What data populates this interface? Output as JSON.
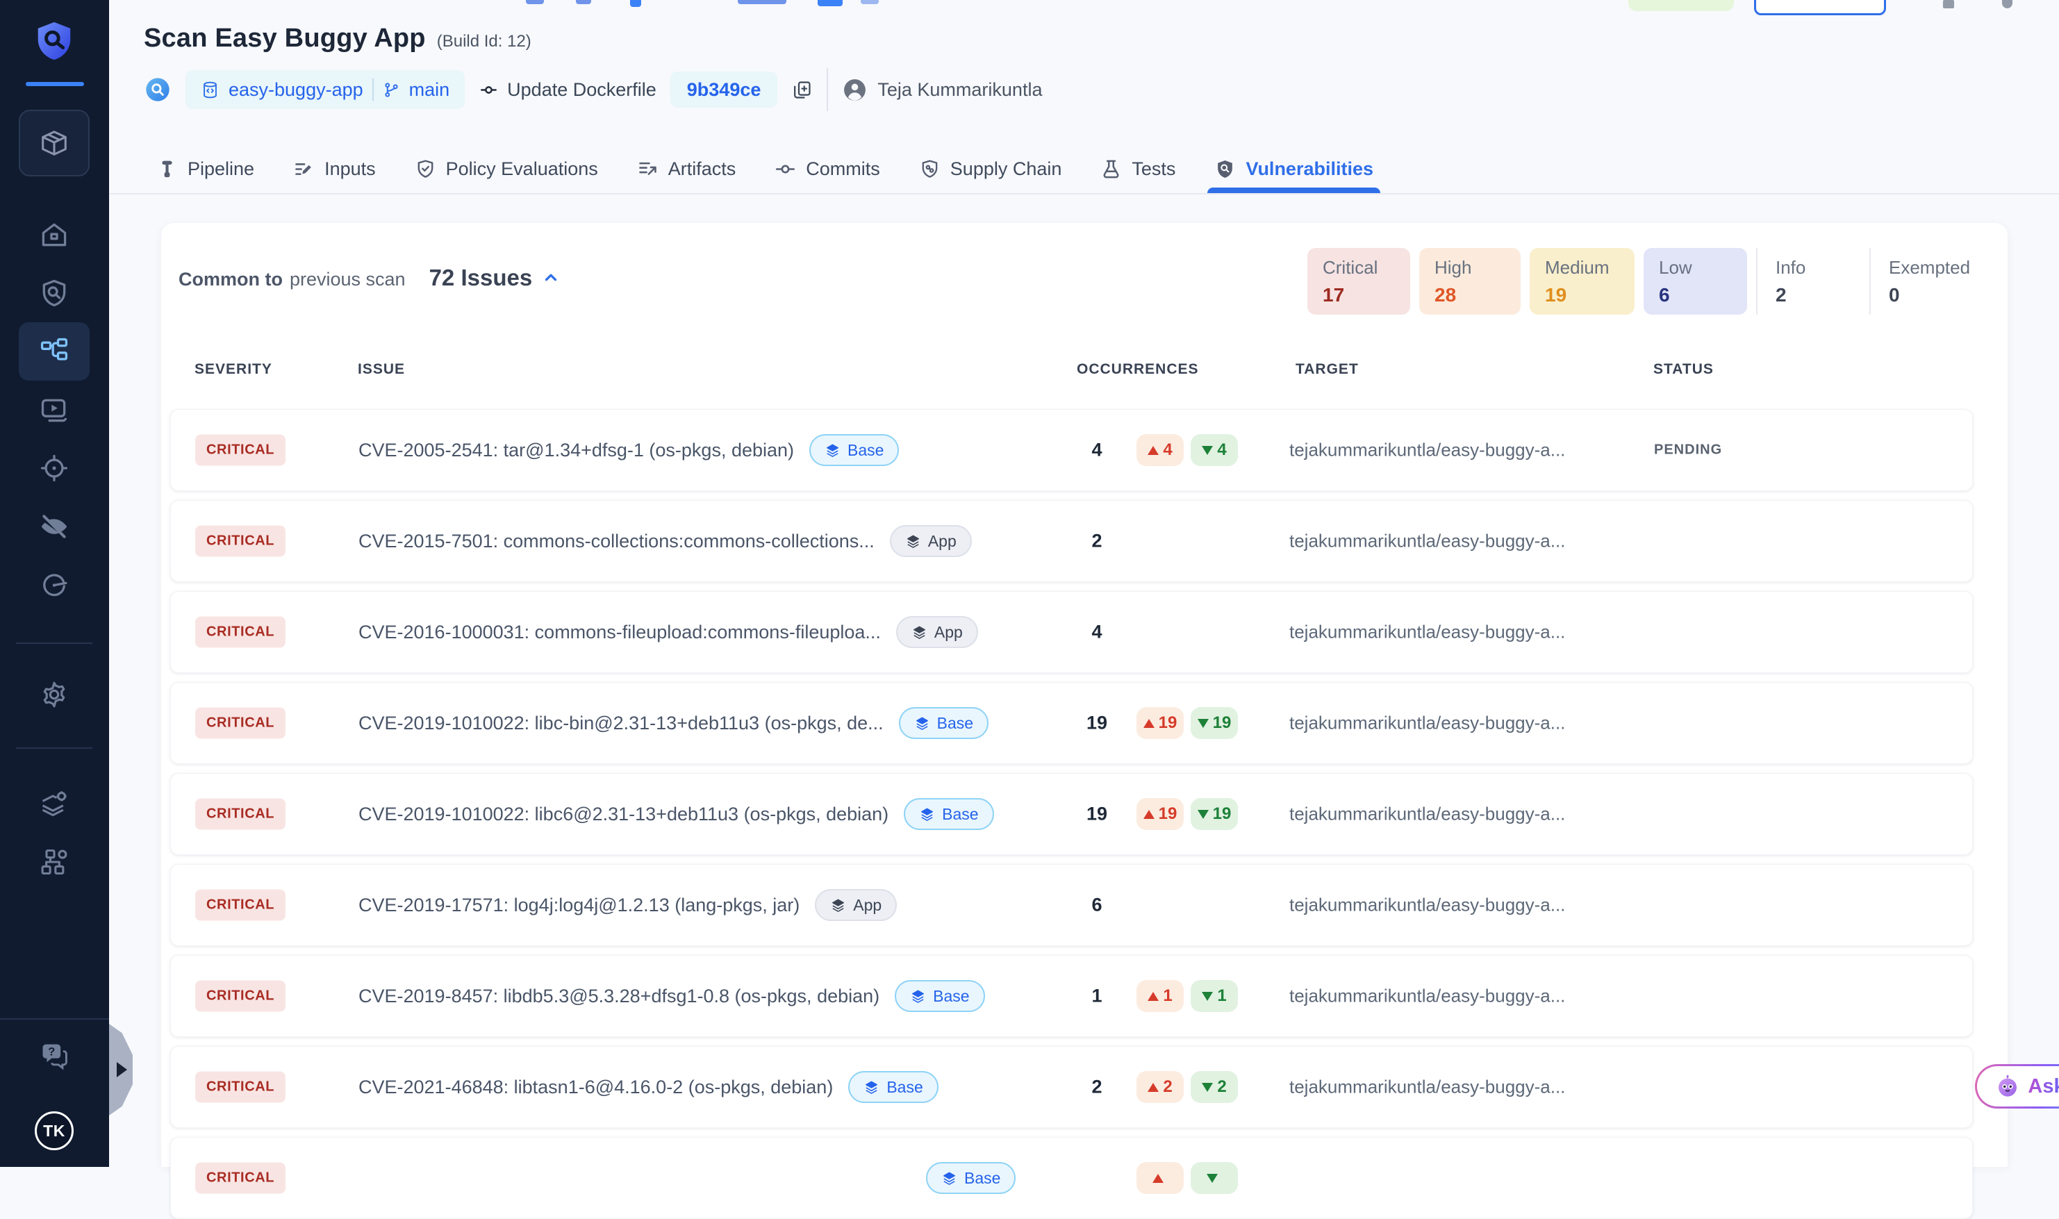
{
  "header": {
    "title": "Scan Easy Buggy App",
    "build_id": "(Build Id: 12)",
    "repo_name": "easy-buggy-app",
    "branch": "main",
    "commit_message": "Update Dockerfile",
    "commit_hash": "9b349ce",
    "author": "Teja Kummarikuntla"
  },
  "sidebar": {
    "logo_icon": "shield-logo",
    "project_icon": "package",
    "nav": [
      {
        "icon": "home",
        "active": false
      },
      {
        "icon": "scan-shield",
        "active": false
      },
      {
        "icon": "pipeline",
        "active": true
      },
      {
        "icon": "video-run",
        "active": false
      },
      {
        "icon": "target",
        "active": false
      },
      {
        "icon": "eye-off",
        "active": false
      },
      {
        "icon": "gauge",
        "active": false
      }
    ],
    "settings_icon": "gear",
    "admin": [
      {
        "icon": "layers-gear"
      },
      {
        "icon": "org-gear"
      }
    ],
    "help_icon": "chat-help",
    "avatar_initials": "TK"
  },
  "tabs": [
    {
      "label": "Pipeline",
      "icon": "tab-pipeline",
      "active": false
    },
    {
      "label": "Inputs",
      "icon": "tab-inputs",
      "active": false
    },
    {
      "label": "Policy Evaluations",
      "icon": "tab-policy",
      "active": false
    },
    {
      "label": "Artifacts",
      "icon": "tab-artifacts",
      "active": false
    },
    {
      "label": "Commits",
      "icon": "tab-commits",
      "active": false
    },
    {
      "label": "Supply Chain",
      "icon": "tab-supply-chain",
      "active": false
    },
    {
      "label": "Tests",
      "icon": "tab-tests",
      "active": false
    },
    {
      "label": "Vulnerabilities",
      "icon": "tab-vulnerabilities",
      "active": true
    }
  ],
  "summary": {
    "scope_bold": "Common to",
    "scope_rest": "previous scan",
    "issues_total": "72 Issues",
    "severities": [
      {
        "label": "Critical",
        "count": "17",
        "bg": "#f6e3e2",
        "num_color": "#9c2b21"
      },
      {
        "label": "High",
        "count": "28",
        "bg": "#fcebdc",
        "num_color": "#e05627"
      },
      {
        "label": "Medium",
        "count": "19",
        "bg": "#faefcc",
        "num_color": "#df8e1d"
      },
      {
        "label": "Low",
        "count": "6",
        "bg": "#e2e4f8",
        "num_color": "#28337e"
      },
      {
        "label": "Info",
        "count": "2",
        "bg": "",
        "num_color": "#3f4756"
      },
      {
        "label": "Exempted",
        "count": "0",
        "bg": "",
        "num_color": "#3f4756"
      }
    ]
  },
  "table": {
    "columns": [
      "SEVERITY",
      "ISSUE",
      "OCCURRENCES",
      "TARGET",
      "STATUS"
    ],
    "rows": [
      {
        "severity": "CRITICAL",
        "issue": "CVE-2005-2541: tar@1.34+dfsg-1 (os-pkgs, debian)",
        "type": "Base",
        "occurrences": "4",
        "up": "4",
        "down": "4",
        "target": "tejakummarikuntla/easy-buggy-a...",
        "status": "PENDING"
      },
      {
        "severity": "CRITICAL",
        "issue": "CVE-2015-7501: commons-collections:commons-collections...",
        "type": "App",
        "occurrences": "2",
        "target": "tejakummarikuntla/easy-buggy-a...",
        "status": ""
      },
      {
        "severity": "CRITICAL",
        "issue": "CVE-2016-1000031: commons-fileupload:commons-fileuploa...",
        "type": "App",
        "occurrences": "4",
        "target": "tejakummarikuntla/easy-buggy-a...",
        "status": ""
      },
      {
        "severity": "CRITICAL",
        "issue": "CVE-2019-1010022: libc-bin@2.31-13+deb11u3 (os-pkgs, de...",
        "type": "Base",
        "occurrences": "19",
        "up": "19",
        "down": "19",
        "target": "tejakummarikuntla/easy-buggy-a...",
        "status": ""
      },
      {
        "severity": "CRITICAL",
        "issue": "CVE-2019-1010022: libc6@2.31-13+deb11u3 (os-pkgs, debian)",
        "type": "Base",
        "occurrences": "19",
        "up": "19",
        "down": "19",
        "target": "tejakummarikuntla/easy-buggy-a...",
        "status": ""
      },
      {
        "severity": "CRITICAL",
        "issue": "CVE-2019-17571: log4j:log4j@1.2.13 (lang-pkgs, jar)",
        "type": "App",
        "occurrences": "6",
        "target": "tejakummarikuntla/easy-buggy-a...",
        "status": ""
      },
      {
        "severity": "CRITICAL",
        "issue": "CVE-2019-8457: libdb5.3@5.3.28+dfsg1-0.8 (os-pkgs, debian)",
        "type": "Base",
        "occurrences": "1",
        "up": "1",
        "down": "1",
        "target": "tejakummarikuntla/easy-buggy-a...",
        "status": ""
      },
      {
        "severity": "CRITICAL",
        "issue": "CVE-2021-46848: libtasn1-6@4.16.0-2 (os-pkgs, debian)",
        "type": "Base",
        "occurrences": "2",
        "up": "2",
        "down": "2",
        "target": "tejakummarikuntla/easy-buggy-a...",
        "status": ""
      },
      {
        "severity": "CRITICAL",
        "issue": "",
        "type": "Base",
        "occurrences": "",
        "up": "",
        "down": "",
        "target": "",
        "status": "",
        "partial": true
      }
    ]
  },
  "ask_ai": {
    "label": "Ask AI"
  },
  "colors": {
    "accent_blue": "#2f6fe8",
    "sidebar_bg": "#101b30",
    "critical_red": "#a92c24",
    "page_bg": "#f8f9fd"
  }
}
